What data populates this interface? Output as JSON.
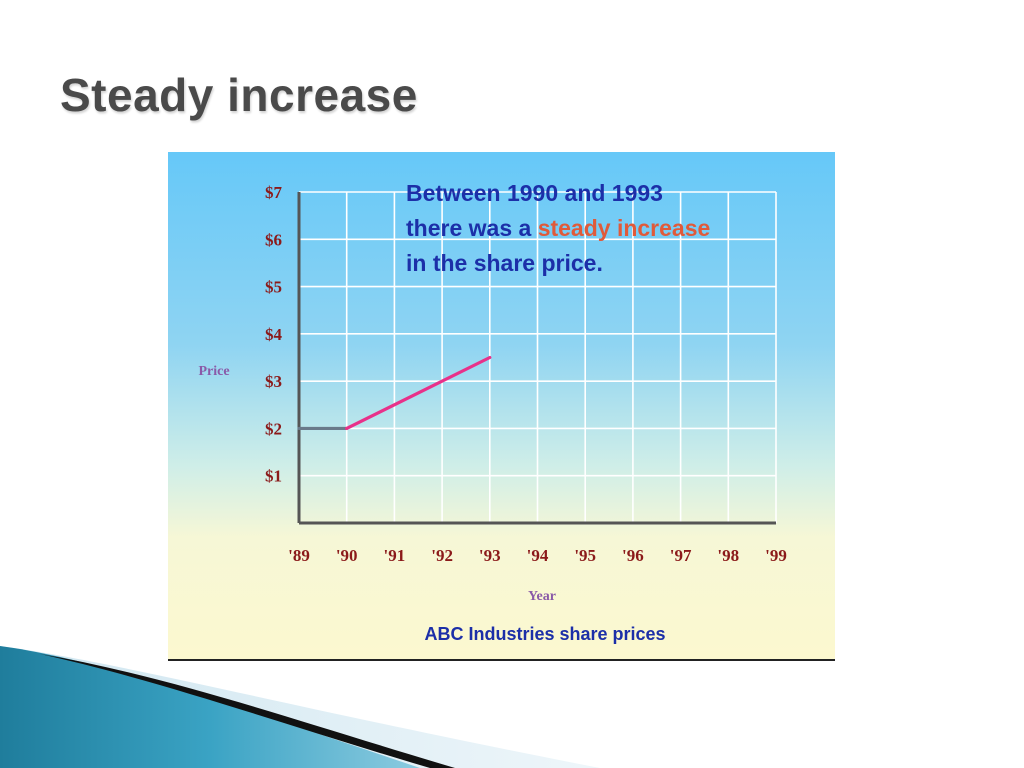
{
  "slide": {
    "title": "Steady increase"
  },
  "callout": {
    "line1": "Between 1990 and 1993",
    "line2_before": "there was a ",
    "line2_highlight": "steady increase",
    "line3": "in the share price."
  },
  "colors": {
    "title": "#4a4a4a",
    "callout_text": "#1c2fa8",
    "callout_highlight": "#e05a3a",
    "axis_tick_labels": "#8b1a1a",
    "axis_titles": "#8a5aa8",
    "chart_caption": "#1c2fa8",
    "series_flat": "#6a7a8a",
    "series_rise": "#e8318a",
    "grid": "#ffffff"
  },
  "chart_data": {
    "type": "line",
    "title": "",
    "caption": "ABC Industries share prices",
    "xlabel": "Year",
    "ylabel": "Price",
    "x_ticks": [
      "'89",
      "'90",
      "'91",
      "'92",
      "'93",
      "'94",
      "'95",
      "'96",
      "'97",
      "'98",
      "'99"
    ],
    "y_ticks": [
      "$1",
      "$2",
      "$3",
      "$4",
      "$5",
      "$6",
      "$7"
    ],
    "xlim": [
      1989,
      1999
    ],
    "ylim": [
      0,
      7
    ],
    "grid": true,
    "series": [
      {
        "x": [
          1989,
          1990
        ],
        "y": [
          2,
          2
        ],
        "color": "#6a7a8a"
      },
      {
        "x": [
          1990,
          1993
        ],
        "y": [
          2,
          3.5
        ],
        "color": "#e8318a"
      }
    ]
  }
}
